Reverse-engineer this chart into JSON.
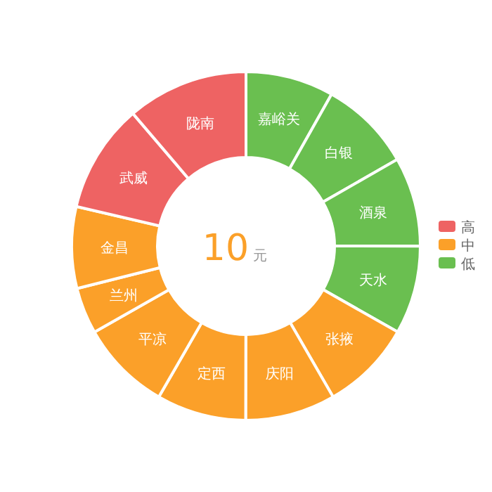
{
  "chart_data": {
    "type": "donut",
    "categories": [
      "嘉峪关",
      "白银",
      "酒泉",
      "天水",
      "张掖",
      "庆阳",
      "定西",
      "平凉",
      "兰州",
      "金昌",
      "武威",
      "陇南"
    ],
    "values": [
      8.17,
      8.56,
      8.28,
      8.19,
      8.47,
      8.36,
      8.31,
      8.44,
      4.3,
      7.56,
      10.11,
      11.25
    ],
    "colors": [
      "#6abf50",
      "#6abf50",
      "#6abf50",
      "#6abf50",
      "#fba029",
      "#fba029",
      "#fba029",
      "#fba029",
      "#fba029",
      "#fba029",
      "#ee6363",
      "#ee6363"
    ],
    "annotations": [
      "10",
      "元",
      "高",
      "中",
      "低"
    ]
  }
}
